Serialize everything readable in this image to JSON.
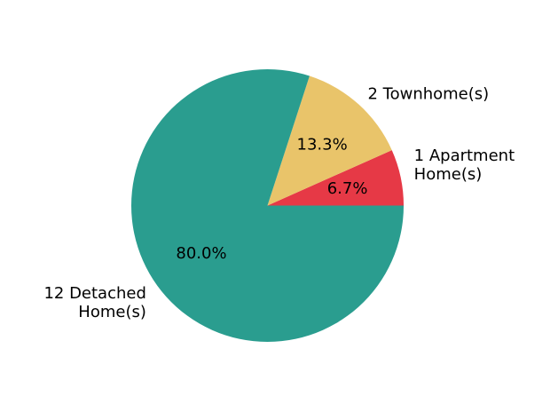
{
  "chart_data": {
    "type": "pie",
    "start_angle_deg": 0,
    "direction": "counterclockwise",
    "slices": [
      {
        "label": "1 Apartment\nHome(s)",
        "value": 1,
        "pct_label": "6.7%",
        "color": "#e63946"
      },
      {
        "label": "2 Townhome(s)",
        "value": 2,
        "pct_label": "13.3%",
        "color": "#e9c46a"
      },
      {
        "label": "12 Detached\nHome(s)",
        "value": 12,
        "pct_label": "80.0%",
        "color": "#2a9d8f"
      }
    ]
  }
}
